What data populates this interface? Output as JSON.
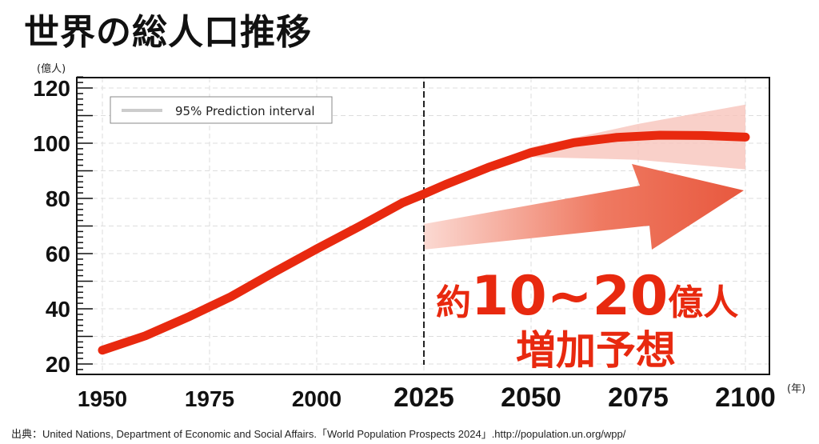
{
  "title": "世界の総人口推移",
  "source": "出典：United Nations, Department of Economic and Social Affairs.「World Population Prospects 2024」.http://population.un.org/wpp/",
  "chart_data": {
    "type": "line",
    "title": "世界の総人口推移",
    "ylabel": "(億人)",
    "xlabel": "(年)",
    "xlim": [
      1944,
      2112
    ],
    "ylim": [
      16,
      124
    ],
    "xticks": [
      1950,
      1975,
      2000,
      2025,
      2050,
      2075,
      2100
    ],
    "yticks": [
      20,
      40,
      60,
      80,
      100,
      120
    ],
    "grid": true,
    "projection_start": 2025,
    "legend": {
      "label": "95% Prediction interval",
      "placement": "top-left"
    },
    "series": [
      {
        "x": [
          1950,
          1960,
          1970,
          1980,
          1990,
          2000,
          2010,
          2020,
          2025,
          2030,
          2040,
          2050,
          2060,
          2070,
          2080,
          2090,
          2100
        ],
        "values": [
          25.0,
          30.2,
          37.0,
          44.4,
          53.2,
          61.7,
          69.9,
          78.4,
          81.6,
          85.0,
          91.2,
          96.6,
          100.2,
          102.1,
          102.9,
          102.8,
          102.2
        ]
      }
    ],
    "interval": {
      "x": [
        2025,
        2050,
        2075,
        2100
      ],
      "lower": [
        81.6,
        95,
        94,
        90.5
      ],
      "upper": [
        81.6,
        98.5,
        107,
        114
      ]
    },
    "annotation": {
      "line1_prefix": "約",
      "line1_range": "10~20",
      "line1_suffix": "億人",
      "line2": "増加予想"
    },
    "colors": {
      "line": "#e8290f",
      "interval": "#f7c4bb",
      "arrow": "#e8583e"
    }
  }
}
